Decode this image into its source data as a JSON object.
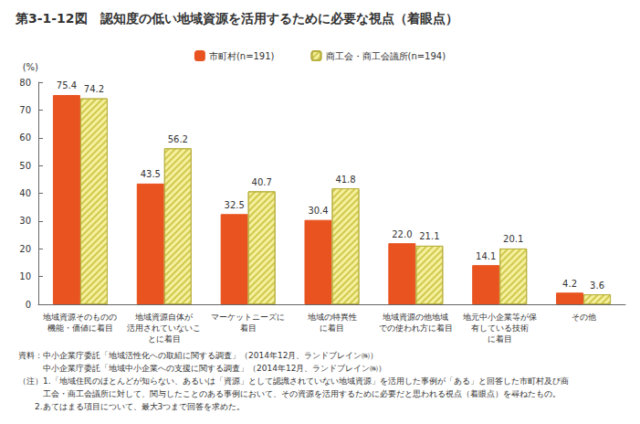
{
  "chart_data": {
    "type": "bar",
    "title": "第3-1-12図　認知度の低い地域資源を活用するために必要な視点（着眼点）",
    "y_label": "(%)",
    "categories": [
      "地域資源そのものの\n機能・価値に着目",
      "地域資源自体が\n活用されていないこ\nとに着目",
      "マーケットニーズに\n着目",
      "地域の特異性\nに着目",
      "地域資源の他地域\nでの使われ方に着目",
      "地元中小企業等が保\n有している技術\nに着目",
      "その他"
    ],
    "series": [
      {
        "name": "市町村(n=191)",
        "color": "#e8531f",
        "values": [
          75.4,
          43.5,
          32.5,
          30.4,
          22.0,
          14.1,
          4.2
        ],
        "value_labels": [
          "75.4",
          "43.5",
          "32.5",
          "30.4",
          "22.0",
          "14.1",
          "4.2"
        ]
      },
      {
        "name": "商工会・商工会議所(n=194)",
        "color": "#f4f09c",
        "values": [
          74.2,
          56.2,
          40.7,
          41.8,
          21.1,
          20.1,
          3.6
        ],
        "value_labels": [
          "74.2",
          "56.2",
          "40.7",
          "41.8",
          "21.1",
          "20.1",
          "3.6"
        ]
      }
    ],
    "ylim": [
      0,
      80
    ],
    "yticks": [
      0,
      10,
      20,
      30,
      40,
      50,
      60,
      70,
      80
    ],
    "grid": false,
    "legend": "top",
    "data_labels": true,
    "annotations": [
      "資料：中小企業庁委託「地域活性化への取組に関する調査」（2014年12月、ランドブレイン㈱）",
      "　　　中小企業庁委託「地域中小企業への支援に関する調査」（2014年12月、ランドブレイン㈱）",
      "（注）1.「地域住民のほとんどが知らない、あるいは「資源」として認識されていない地域資源」を活用した事例が「ある」と回答した市町村及び商",
      "　　　工会・商工会議所に対して、関与したことのある事例において、その資源を活用するために必要だと思われる視点（着眼点）を尋ねたもの。",
      "　　2.あてはまる項目について、最大3つまで回答を求めた。"
    ]
  }
}
